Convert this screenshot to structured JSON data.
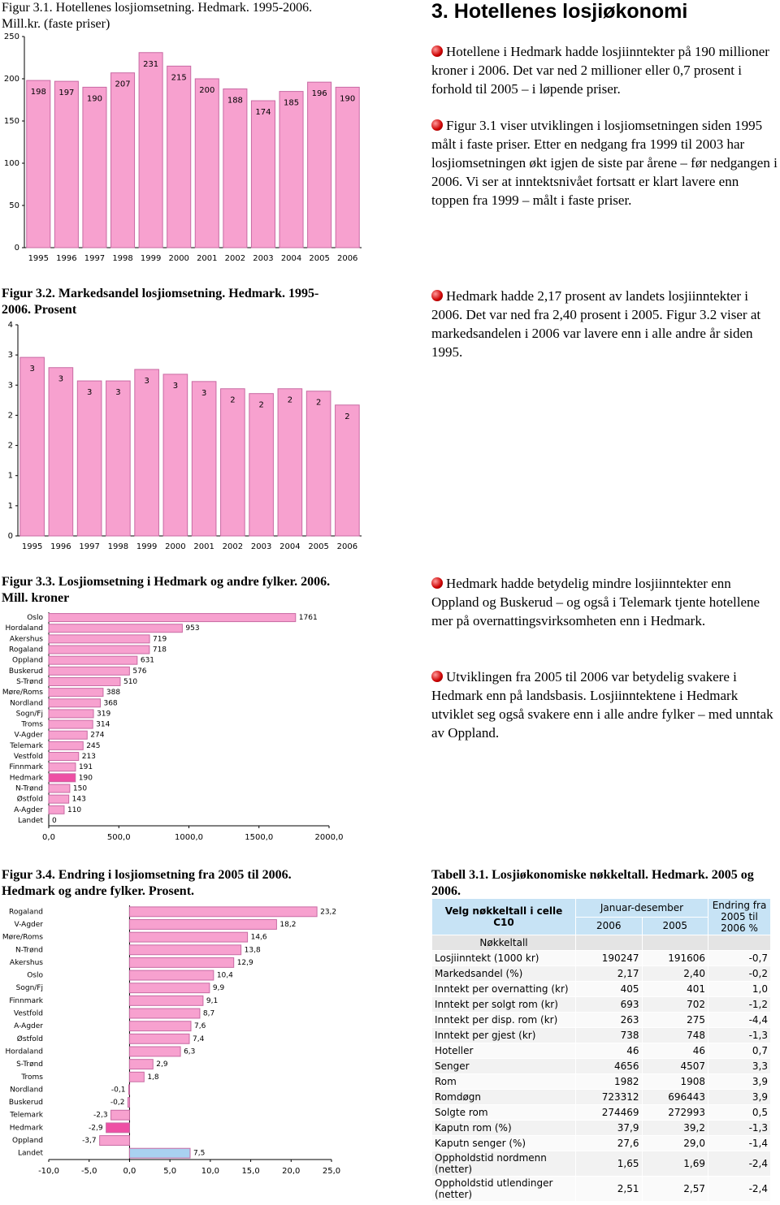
{
  "section": {
    "title": "3. Hotellenes losjiøkonomi",
    "paragraphs": [
      "Hotellene i Hedmark hadde losjiinntekter på 190 millioner kroner i 2006. Det var ned 2 millioner eller 0,7 prosent i forhold til 2005 – i løpende priser.",
      "Figur 3.1 viser utviklingen i losjiomsetningen siden 1995 målt i faste priser. Etter en nedgang fra 1999 til 2003 har losjiomsetningen økt igjen de siste par årene – før nedgangen i 2006. Vi ser at inntektsnivået fortsatt er klart lavere enn toppen fra 1999 – målt i faste priser.",
      "Hedmark hadde 2,17 prosent av landets losjiinntekter i 2006. Det var ned fra 2,40 prosent i 2005. Figur 3.2 viser at markedsandelen i 2006 var lavere enn i alle andre år siden 1995.",
      "Hedmark hadde betydelig mindre losjiinntekter enn Oppland og Buskerud – og også i Telemark tjente hotellene mer på overnattingsvirksomheten enn i Hedmark.",
      "Utviklingen fra 2005 til 2006 var betydelig svakere i Hedmark enn på landsbasis. Losjiinntektene i Hedmark utviklet seg også svakere enn i alle andre fylker – med unntak av Oppland."
    ]
  },
  "chart_data": [
    {
      "type": "bar",
      "title": "Figur 3.1. Hotellenes losjiomsetning. Hedmark. 1995-2006. Mill.kr. (faste priser)",
      "categories": [
        "1995",
        "1996",
        "1997",
        "1998",
        "1999",
        "2000",
        "2001",
        "2002",
        "2003",
        "2004",
        "2005",
        "2006"
      ],
      "values": [
        198,
        197,
        190,
        207,
        231,
        215,
        200,
        188,
        174,
        185,
        196,
        190
      ],
      "color": "#f7a1cf",
      "ylim": [
        0,
        250
      ],
      "yticks": [
        0,
        50,
        100,
        150,
        200,
        250
      ]
    },
    {
      "type": "bar",
      "title": "Figur 3.2. Markedsandel losjiomsetning. Hedmark. 1995-2006. Prosent",
      "categories": [
        "1995",
        "1996",
        "1997",
        "1998",
        "1999",
        "2000",
        "2001",
        "2002",
        "2003",
        "2004",
        "2005",
        "2006"
      ],
      "values": [
        2.96,
        2.79,
        2.57,
        2.57,
        2.76,
        2.68,
        2.56,
        2.44,
        2.36,
        2.44,
        2.4,
        2.17
      ],
      "value_labels": [
        "3",
        "3",
        "3",
        "3",
        "3",
        "3",
        "3",
        "2",
        "2",
        "2",
        "2",
        "2"
      ],
      "color": "#f7a1cf",
      "ylim": [
        0,
        3.5
      ],
      "yticks": [
        0,
        {
          "value": 0.5,
          "label": "1"
        },
        1,
        {
          "value": 1.5,
          "label": "2"
        },
        2,
        {
          "value": 2.5,
          "label": "3"
        },
        3,
        {
          "value": 3.5,
          "label": "4"
        }
      ]
    },
    {
      "type": "barh",
      "title": "Figur 3.3. Losjiomsetning i Hedmark og andre fylker. 2006. Mill. kroner",
      "categories": [
        "Oslo",
        "Hordaland",
        "Akershus",
        "Rogaland",
        "Oppland",
        "Buskerud",
        "S-Trønd",
        "Møre/Roms",
        "Nordland",
        "Sogn/Fj",
        "Troms",
        "V-Agder",
        "Telemark",
        "Vestfold",
        "Finnmark",
        "Hedmark",
        "N-Trønd",
        "Østfold",
        "A-Agder",
        "Landet"
      ],
      "values": [
        1761,
        953,
        719,
        718,
        631,
        576,
        510,
        388,
        368,
        319,
        314,
        274,
        245,
        213,
        191,
        190,
        150,
        143,
        110,
        0
      ],
      "colors": [
        "#f7a1cf",
        "#f7a1cf",
        "#f7a1cf",
        "#f7a1cf",
        "#f7a1cf",
        "#f7a1cf",
        "#f7a1cf",
        "#f7a1cf",
        "#f7a1cf",
        "#f7a1cf",
        "#f7a1cf",
        "#f7a1cf",
        "#f7a1cf",
        "#f7a1cf",
        "#f7a1cf",
        "#ee4fa4",
        "#f7a1cf",
        "#f7a1cf",
        "#f7a1cf",
        "#f7a1cf"
      ],
      "xlim": [
        0,
        2000
      ],
      "xticks": [
        {
          "value": 0,
          "label": "0,0"
        },
        {
          "value": 500,
          "label": "500,0"
        },
        {
          "value": 1000,
          "label": "1000,0"
        },
        {
          "value": 1500,
          "label": "1500,0"
        },
        {
          "value": 2000,
          "label": "2000,0"
        }
      ]
    },
    {
      "type": "barh",
      "title": "Figur 3.4. Endring i losjiomsetning fra 2005 til 2006. Hedmark og andre fylker. Prosent.",
      "categories": [
        "Rogaland",
        "V-Agder",
        "Møre/Roms",
        "N-Trønd",
        "Akershus",
        "Oslo",
        "Sogn/Fj",
        "Finnmark",
        "Vestfold",
        "A-Agder",
        "Østfold",
        "Hordaland",
        "S-Trønd",
        "Troms",
        "Nordland",
        "Buskerud",
        "Telemark",
        "Hedmark",
        "Oppland",
        "Landet"
      ],
      "values": [
        23.2,
        18.2,
        14.6,
        13.8,
        12.9,
        10.4,
        9.9,
        9.1,
        8.7,
        7.6,
        7.4,
        6.3,
        2.9,
        1.8,
        -0.1,
        -0.2,
        -2.3,
        -2.9,
        -3.7,
        7.5
      ],
      "value_labels": [
        "23,2",
        "18,2",
        "14,6",
        "13,8",
        "12,9",
        "10,4",
        "9,9",
        "9,1",
        "8,7",
        "7,6",
        "7,4",
        "6,3",
        "2,9",
        "1,8",
        "-0,1",
        "-0,2",
        "-2,3",
        "-2,9",
        "-3,7",
        "7,5"
      ],
      "colors": [
        "#f7a1cf",
        "#f7a1cf",
        "#f7a1cf",
        "#f7a1cf",
        "#f7a1cf",
        "#f7a1cf",
        "#f7a1cf",
        "#f7a1cf",
        "#f7a1cf",
        "#f7a1cf",
        "#f7a1cf",
        "#f7a1cf",
        "#f7a1cf",
        "#f7a1cf",
        "#f7a1cf",
        "#f7a1cf",
        "#f7a1cf",
        "#ee4fa4",
        "#f7a1cf",
        "#a9d1f0"
      ],
      "xlim": [
        -10,
        25
      ],
      "xticks": [
        {
          "value": -10,
          "label": "-10,0"
        },
        {
          "value": -5,
          "label": "-5,0"
        },
        {
          "value": 0,
          "label": "0,0"
        },
        {
          "value": 5,
          "label": "5,0"
        },
        {
          "value": 10,
          "label": "10,0"
        },
        {
          "value": 15,
          "label": "15,0"
        },
        {
          "value": 20,
          "label": "20,0"
        },
        {
          "value": 25,
          "label": "25,0"
        }
      ]
    }
  ],
  "table": {
    "title": "Tabell 3.1. Losjiøkonomiske nøkkeltall. Hedmark. 2005 og 2006.",
    "select_label": "Velg nøkkeltall i celle C10",
    "period": "Januar-desember",
    "columns": [
      "2006",
      "2005",
      "Endring fra 2005 til 2006 %"
    ],
    "filter": "Nøkkeltall",
    "rows": [
      [
        "Losjiinntekt (1000 kr)",
        "190247",
        "191606",
        "-0,7"
      ],
      [
        "Markedsandel (%)",
        "2,17",
        "2,40",
        "-0,2"
      ],
      [
        "Inntekt per overnatting (kr)",
        "405",
        "401",
        "1,0"
      ],
      [
        "Inntekt per solgt rom (kr)",
        "693",
        "702",
        "-1,2"
      ],
      [
        "Inntekt per disp. rom (kr)",
        "263",
        "275",
        "-4,4"
      ],
      [
        "Inntekt per gjest (kr)",
        "738",
        "748",
        "-1,3"
      ],
      [
        "Hoteller",
        "46",
        "46",
        "0,7"
      ],
      [
        "Senger",
        "4656",
        "4507",
        "3,3"
      ],
      [
        "Rom",
        "1982",
        "1908",
        "3,9"
      ],
      [
        "Romdøgn",
        "723312",
        "696443",
        "3,9"
      ],
      [
        "Solgte rom",
        "274469",
        "272993",
        "0,5"
      ],
      [
        "Kaputn rom (%)",
        "37,9",
        "39,2",
        "-1,3"
      ],
      [
        "Kaputn senger (%)",
        "27,6",
        "29,0",
        "-1,4"
      ],
      [
        "Oppholdstid nordmenn (netter)",
        "1,65",
        "1,69",
        "-2,4"
      ],
      [
        "Oppholdstid utlendinger (netter)",
        "2,51",
        "2,57",
        "-2,4"
      ]
    ]
  }
}
